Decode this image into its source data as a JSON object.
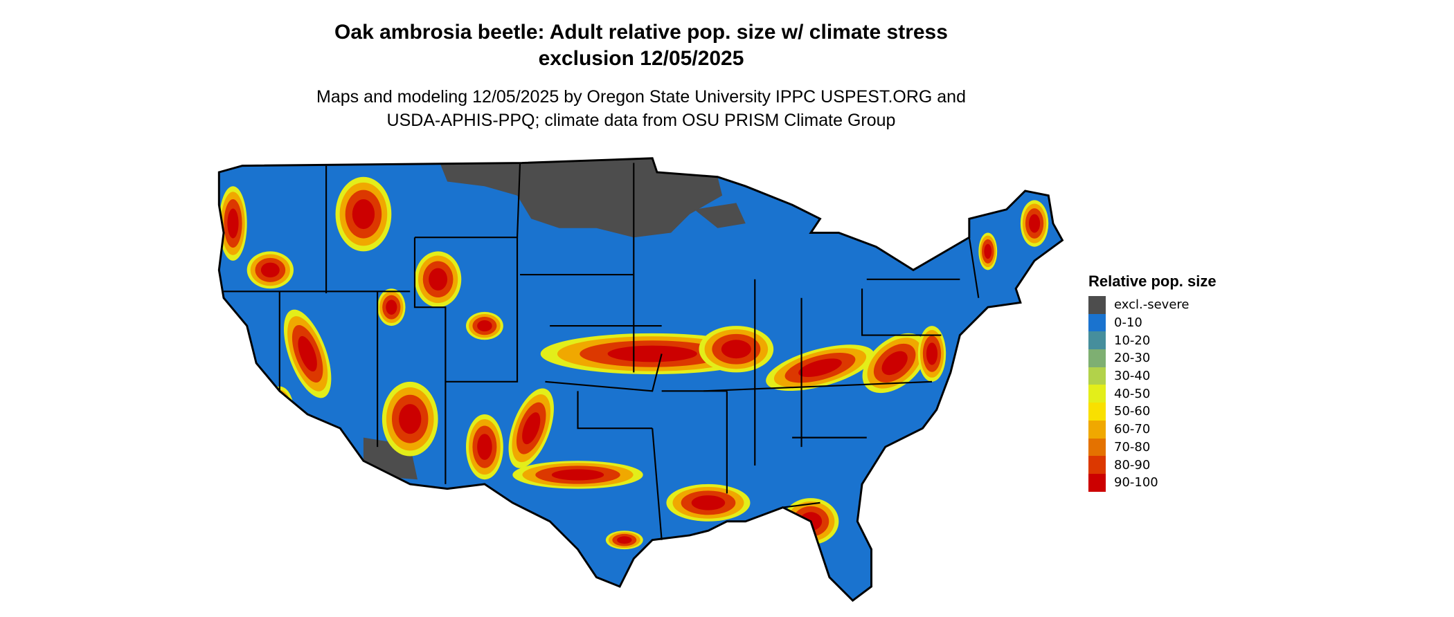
{
  "title_line1": "Oak ambrosia beetle: Adult relative pop. size w/ climate stress",
  "title_line2": "exclusion 12/05/2025",
  "subtitle_line1": "Maps and modeling 12/05/2025 by Oregon State University IPPC USPEST.ORG and",
  "subtitle_line2": "USDA-APHIS-PPQ; climate data from OSU PRISM Climate Group",
  "legend": {
    "title": "Relative pop. size",
    "items": [
      {
        "label": "excl.-severe",
        "color": "#4d4d4d"
      },
      {
        "label": "0-10",
        "color": "#1a73cf"
      },
      {
        "label": "10-20",
        "color": "#468e9c"
      },
      {
        "label": "20-30",
        "color": "#7eaf72"
      },
      {
        "label": "30-40",
        "color": "#b2d24a"
      },
      {
        "label": "40-50",
        "color": "#e3ee1a"
      },
      {
        "label": "50-60",
        "color": "#f9e000"
      },
      {
        "label": "60-70",
        "color": "#f0a800"
      },
      {
        "label": "70-80",
        "color": "#e47200"
      },
      {
        "label": "80-90",
        "color": "#dc3800"
      },
      {
        "label": "90-100",
        "color": "#cc0000"
      }
    ]
  }
}
